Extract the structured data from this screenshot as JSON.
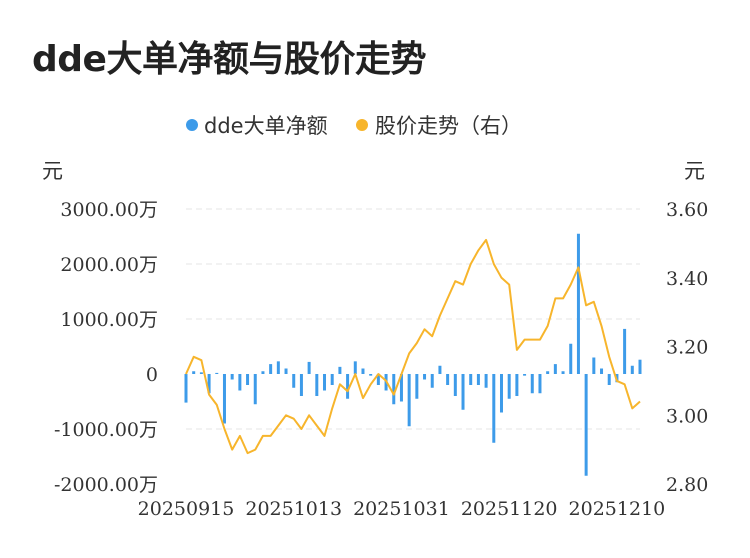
{
  "title": "dde大单净额与股价走势",
  "chart_data": {
    "type": "bar+line",
    "legend": [
      {
        "label": "dde大单净额",
        "color": "#3d9be9"
      },
      {
        "label": "股价走势（右）",
        "color": "#f7b52c"
      }
    ],
    "left_unit": "元",
    "right_unit": "元",
    "left_axis": {
      "min": -2000,
      "max": 3000,
      "ticks": [
        {
          "value": 3000,
          "label": "3000.00万"
        },
        {
          "value": 2000,
          "label": "2000.00万"
        },
        {
          "value": 1000,
          "label": "1000.00万"
        },
        {
          "value": 0,
          "label": "0"
        },
        {
          "value": -1000,
          "label": "-1000.00万"
        },
        {
          "value": -2000,
          "label": "-2000.00万"
        }
      ]
    },
    "right_axis": {
      "min": 2.8,
      "max": 3.6,
      "ticks": [
        {
          "value": 3.6,
          "label": "3.60"
        },
        {
          "value": 3.4,
          "label": "3.40"
        },
        {
          "value": 3.2,
          "label": "3.20"
        },
        {
          "value": 3.0,
          "label": "3.00"
        },
        {
          "value": 2.8,
          "label": "2.80"
        }
      ]
    },
    "x_tick_labels": [
      {
        "index": 0,
        "label": "20250915"
      },
      {
        "index": 14,
        "label": "20251013"
      },
      {
        "index": 28,
        "label": "20251031"
      },
      {
        "index": 42,
        "label": "20251120"
      },
      {
        "index": 56,
        "label": "20251210"
      }
    ],
    "grid": true,
    "bars": [
      -520,
      50,
      30,
      -350,
      20,
      -900,
      -100,
      -300,
      -200,
      -550,
      50,
      180,
      230,
      100,
      -250,
      -400,
      220,
      -400,
      -300,
      -200,
      130,
      -450,
      230,
      100,
      -30,
      -200,
      -300,
      -550,
      -500,
      -950,
      -450,
      -100,
      -250,
      150,
      -200,
      -400,
      -650,
      -200,
      -200,
      -250,
      -1250,
      -700,
      -450,
      -400,
      -30,
      -350,
      -350,
      50,
      180,
      50,
      550,
      2550,
      -1850,
      300,
      100,
      -200,
      -150,
      820,
      150,
      260
    ],
    "price": [
      3.12,
      3.17,
      3.16,
      3.06,
      3.03,
      2.96,
      2.9,
      2.94,
      2.89,
      2.9,
      2.94,
      2.94,
      2.97,
      3.0,
      2.99,
      2.96,
      3.0,
      2.97,
      2.94,
      3.02,
      3.09,
      3.07,
      3.12,
      3.05,
      3.09,
      3.12,
      3.1,
      3.06,
      3.12,
      3.18,
      3.21,
      3.25,
      3.23,
      3.29,
      3.34,
      3.39,
      3.38,
      3.44,
      3.48,
      3.51,
      3.44,
      3.4,
      3.38,
      3.19,
      3.22,
      3.22,
      3.22,
      3.26,
      3.34,
      3.34,
      3.38,
      3.43,
      3.32,
      3.33,
      3.26,
      3.17,
      3.1,
      3.09,
      3.02,
      3.04
    ]
  }
}
